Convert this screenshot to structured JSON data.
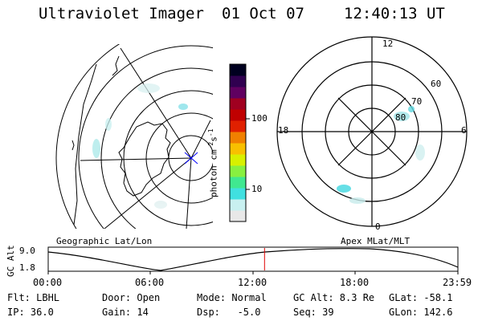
{
  "header": {
    "title": "Ultraviolet Imager",
    "date": "01 Oct 07",
    "time": "12:40:13 UT"
  },
  "colorbar": {
    "unit_label": "photon cm",
    "unit_exp1": "-2",
    "unit_s": "s",
    "unit_exp2": "-1",
    "ticks": [
      "100",
      "10"
    ],
    "colors": [
      "#e8e8e8",
      "#c8f0f0",
      "#40e0e0",
      "#40e890",
      "#88f040",
      "#d8f000",
      "#f8c000",
      "#f08000",
      "#e02000",
      "#c00000",
      "#a00020",
      "#600060",
      "#300050",
      "#000020"
    ]
  },
  "polar_plot": {
    "mlt_labels": [
      "12",
      "18",
      "6",
      "0"
    ],
    "lat_labels": [
      "60",
      "70",
      "80"
    ]
  },
  "timeline": {
    "left_caption": "Geographic Lat/Lon",
    "right_caption": "Apex MLat/MLT",
    "y_axis_label": "GC Alt",
    "y_max": "9.0",
    "y_min": "1.8",
    "x_ticks": [
      "00:00",
      "06:00",
      "12:00",
      "18:00",
      "23:59"
    ],
    "current_time_fraction": 0.528
  },
  "info": {
    "filter": "Flt: LBHL",
    "ip": "IP: 36.0",
    "door": "Door: Open",
    "gain": "Gain: 14",
    "mode": "Mode: Normal",
    "dsp": "Dsp:   -5.0",
    "gc_alt": "GC Alt: 8.3 Re",
    "seq": "Seq: 39",
    "glat": "GLat: -58.1",
    "glon": "GLon: 142.6"
  }
}
